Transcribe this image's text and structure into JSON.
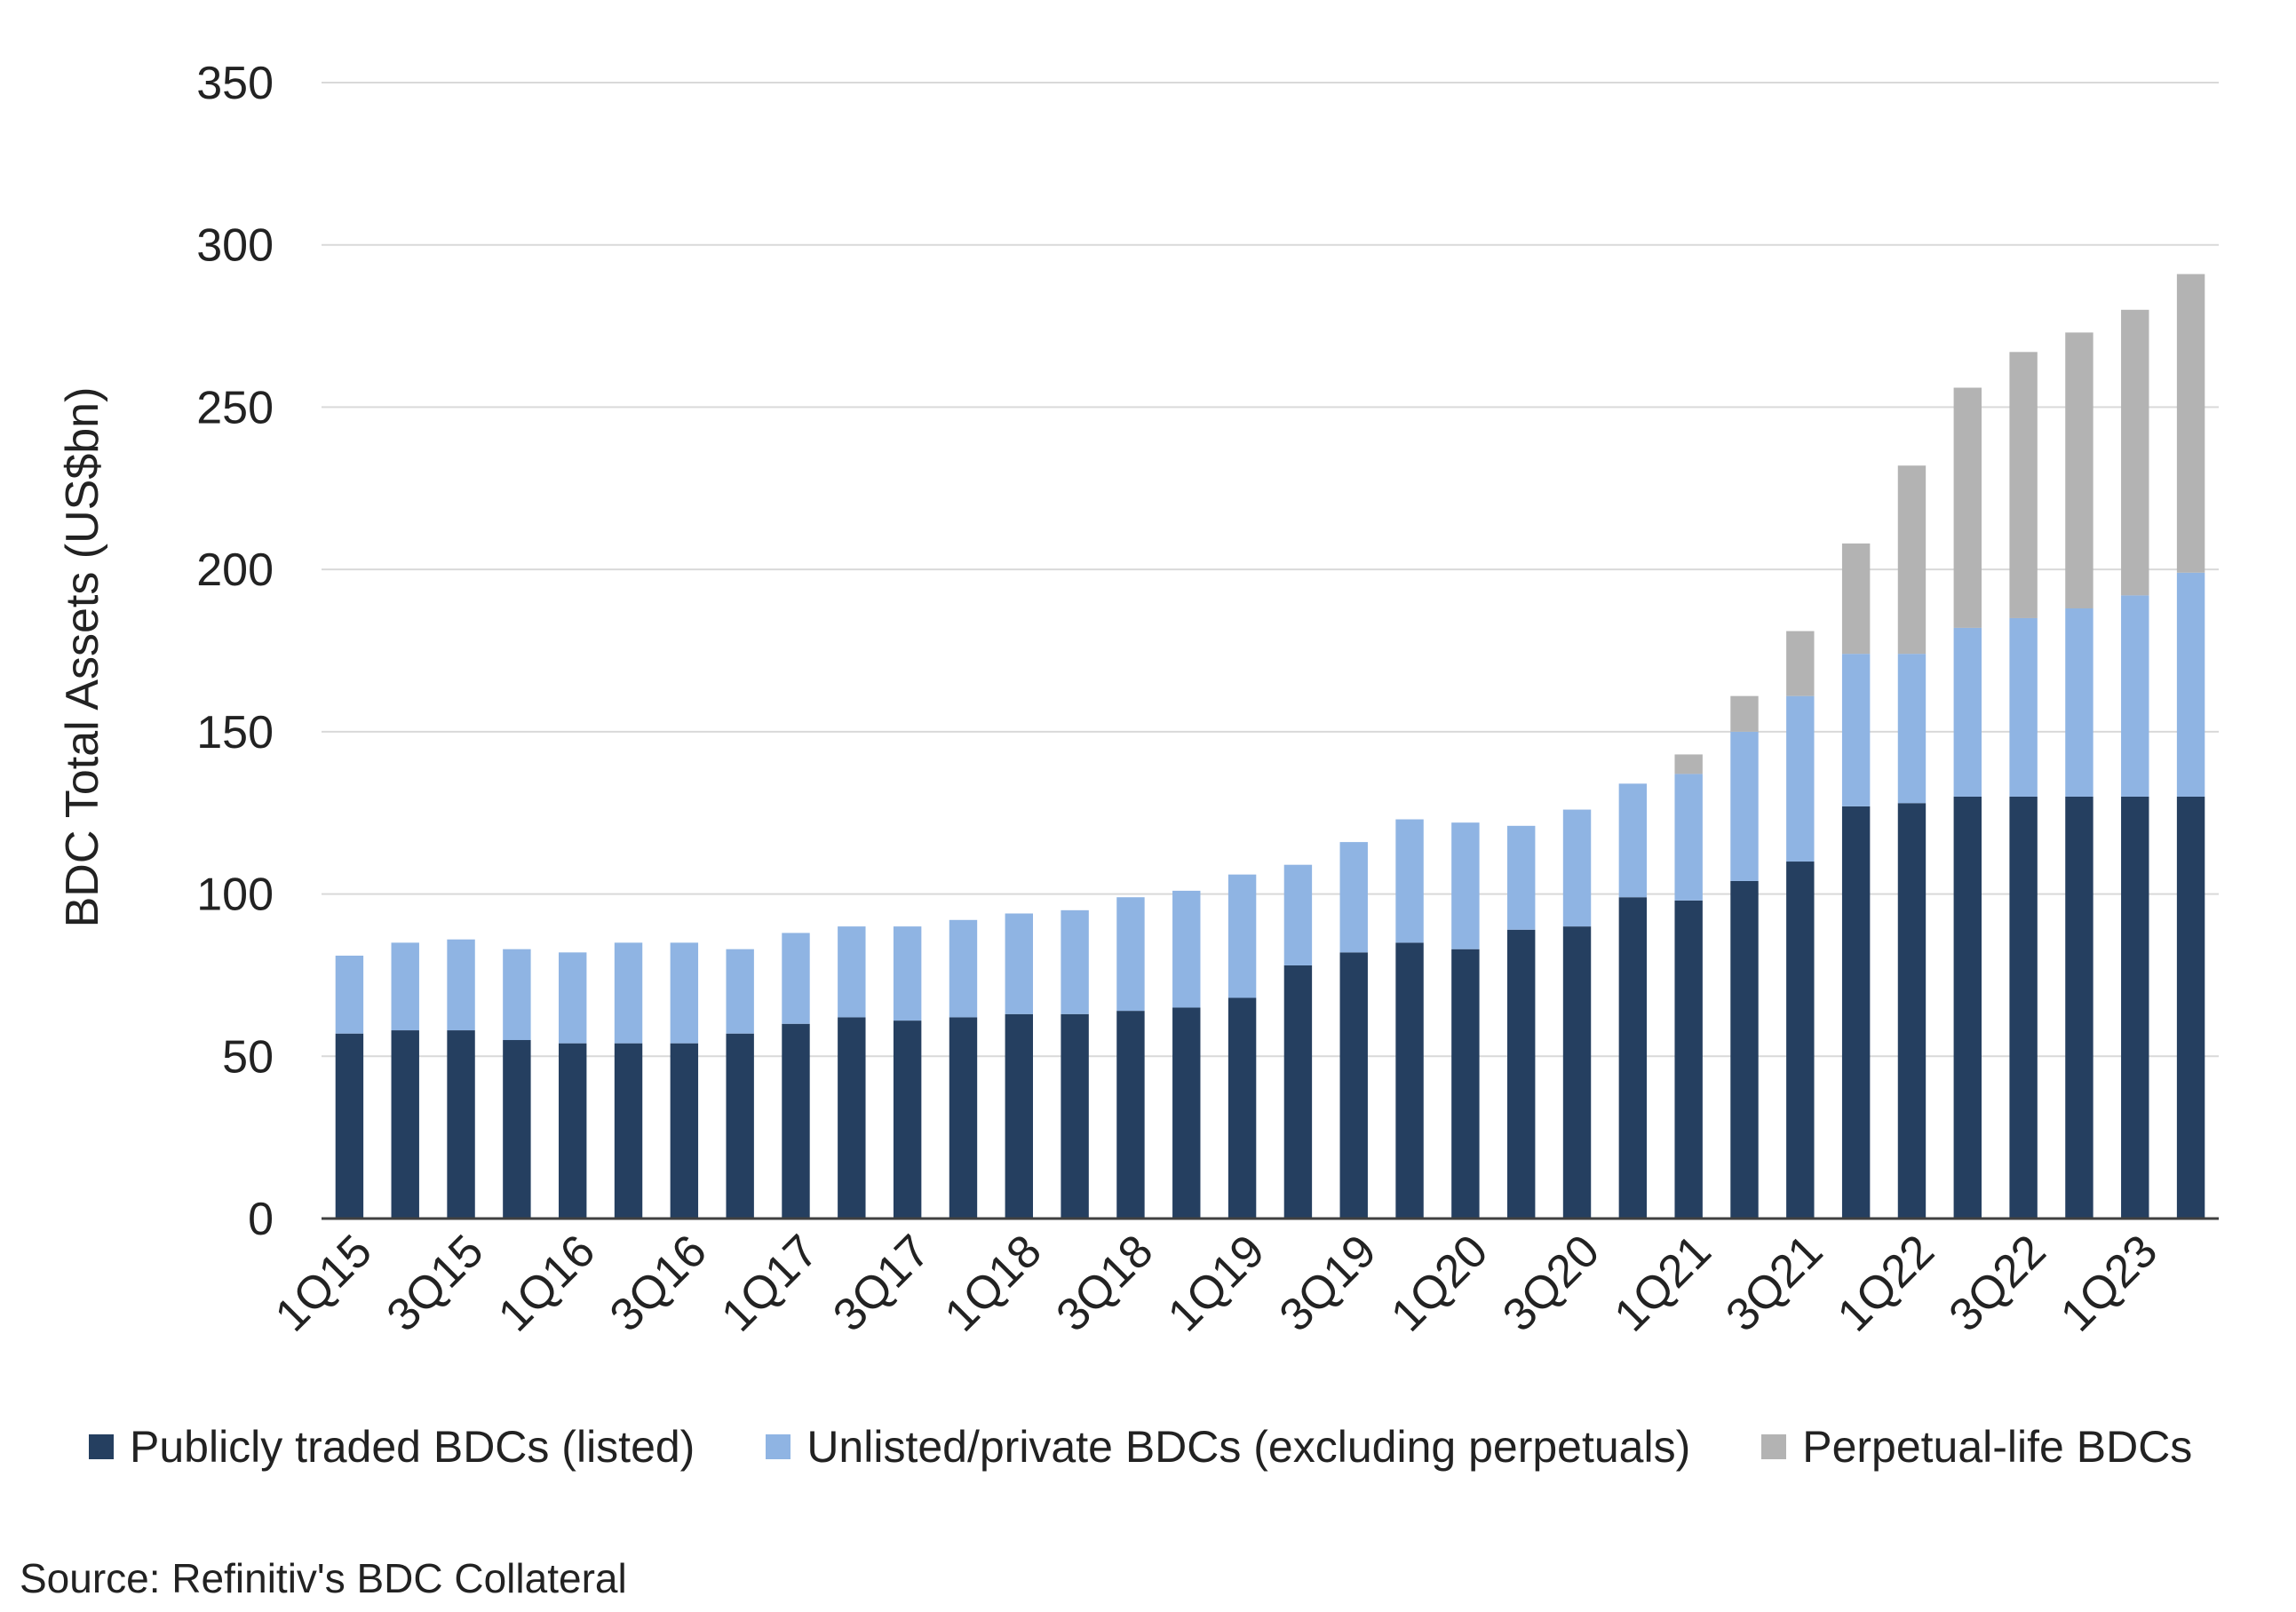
{
  "chart_data": {
    "type": "bar",
    "stacked": true,
    "ylabel": "BDC Total Assets (US$bn)",
    "xlabel": "",
    "ylim": [
      0,
      350
    ],
    "yticks": [
      0,
      50,
      100,
      150,
      200,
      250,
      300,
      350
    ],
    "grid": true,
    "legend_position": "bottom",
    "categories": [
      "1Q15",
      "2Q15",
      "3Q15",
      "4Q15",
      "1Q16",
      "2Q16",
      "3Q16",
      "4Q16",
      "1Q17",
      "2Q17",
      "3Q17",
      "4Q17",
      "1Q18",
      "2Q18",
      "3Q18",
      "4Q18",
      "1Q19",
      "2Q19",
      "3Q19",
      "4Q19",
      "1Q20",
      "2Q20",
      "3Q20",
      "4Q20",
      "1Q21",
      "2Q21",
      "3Q21",
      "4Q21",
      "1Q22",
      "2Q22",
      "3Q22",
      "4Q22",
      "1Q23",
      "2Q23"
    ],
    "tick_labels": [
      "1Q15",
      "",
      "3Q15",
      "",
      "1Q16",
      "",
      "3Q16",
      "",
      "1Q17",
      "",
      "3Q17",
      "",
      "1Q18",
      "",
      "3Q18",
      "",
      "1Q19",
      "",
      "3Q19",
      "",
      "1Q20",
      "",
      "3Q20",
      "",
      "1Q21",
      "",
      "3Q21",
      "",
      "1Q22",
      "",
      "3Q22",
      "",
      "1Q23",
      ""
    ],
    "series": [
      {
        "name": "Publicly traded BDCs (listed)",
        "color": "#253f60",
        "values": [
          57,
          58,
          58,
          55,
          54,
          54,
          54,
          57,
          60,
          62,
          61,
          62,
          63,
          63,
          64,
          65,
          68,
          78,
          82,
          85,
          83,
          89,
          90,
          99,
          98,
          104,
          110,
          127,
          128,
          130,
          130,
          130,
          130,
          130
        ]
      },
      {
        "name": "Unlisted/private BDCs (excluding perpetuals)",
        "color": "#8fb4e3",
        "values": [
          24,
          27,
          28,
          28,
          28,
          31,
          31,
          26,
          28,
          28,
          29,
          30,
          31,
          32,
          35,
          36,
          38,
          31,
          34,
          38,
          39,
          32,
          36,
          35,
          39,
          46,
          51,
          47,
          46,
          52,
          55,
          58,
          62,
          69
        ]
      },
      {
        "name": "Perpetual-life BDCs",
        "color": "#b3b3b3",
        "values": [
          0,
          0,
          0,
          0,
          0,
          0,
          0,
          0,
          0,
          0,
          0,
          0,
          0,
          0,
          0,
          0,
          0,
          0,
          0,
          0,
          0,
          0,
          0,
          0,
          6,
          11,
          20,
          34,
          58,
          74,
          82,
          85,
          88,
          92
        ]
      }
    ]
  },
  "source": "Source: Refinitiv's BDC Collateral"
}
